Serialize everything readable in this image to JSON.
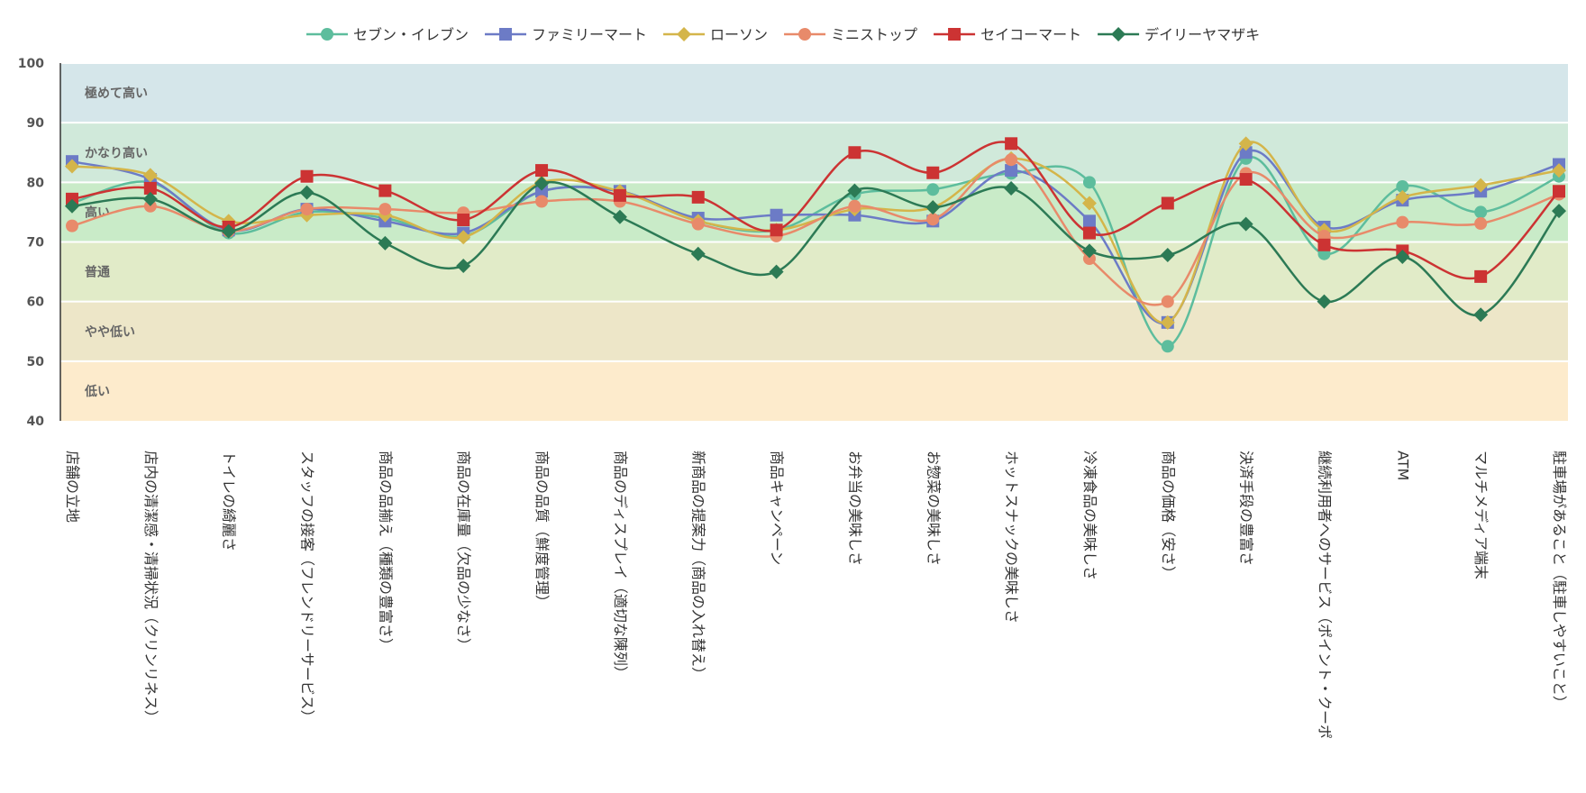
{
  "chart_data": {
    "type": "line",
    "ylim": [
      40,
      100
    ],
    "yticks": [
      40,
      50,
      60,
      70,
      80,
      90,
      100
    ],
    "grid": true,
    "legend_position": "top-center",
    "bands": [
      {
        "label": "極めて高い",
        "from": 90,
        "to": 100,
        "color": "#d5e6ea"
      },
      {
        "label": "かなり高い",
        "from": 80,
        "to": 90,
        "color": "#d0e9da"
      },
      {
        "label": "高い",
        "from": 70,
        "to": 80,
        "color": "#c9ebc8"
      },
      {
        "label": "普通",
        "from": 60,
        "to": 70,
        "color": "#e1ebc8"
      },
      {
        "label": "やや低い",
        "from": 50,
        "to": 60,
        "color": "#ede6c8"
      },
      {
        "label": "低い",
        "from": 40,
        "to": 50,
        "color": "#fdebcc"
      }
    ],
    "categories": [
      "店舗の立地",
      "店内の清潔感・清掃状況（クリンリネス）",
      "トイレの綺麗さ",
      "スタッフの接客（フレンドリーサービス）",
      "商品の品揃え（種類の豊富さ）",
      "商品の在庫量（欠品の少なさ）",
      "商品の品質（鮮度管理）",
      "商品のディスプレイ（適切な陳列）",
      "新商品の提案力（商品の入れ替え）",
      "商品キャンペーン",
      "お弁当の美味しさ",
      "お惣菜の美味しさ",
      "ホットスナックの美味しさ",
      "冷凍食品の美味しさ",
      "商品の価格（安さ）",
      "決済手段の豊富さ",
      "継続利用者へのサービス（ポイント・クーポ",
      "ATM",
      "マルチメディア端末",
      "駐車場があること（駐車しやすいこと）"
    ],
    "series": [
      {
        "name": "セブン・イレブン",
        "color": "#5dbd9d",
        "marker": "circle",
        "values": [
          76.5,
          80,
          71.5,
          75,
          74,
          71,
          78.5,
          78.5,
          73.5,
          72,
          78,
          78.8,
          81.5,
          80,
          52.5,
          84,
          68,
          79.3,
          75,
          81
        ]
      },
      {
        "name": "ファミリーマート",
        "color": "#6c7bc6",
        "marker": "square",
        "values": [
          83.5,
          80.5,
          72,
          75.5,
          73.5,
          71.5,
          78.5,
          78.5,
          74,
          74.5,
          74.5,
          73.5,
          82,
          73.5,
          56.5,
          85,
          72.5,
          77,
          78.5,
          83
        ]
      },
      {
        "name": "ローソン",
        "color": "#d4b54a",
        "marker": "diamond",
        "values": [
          82.7,
          81.2,
          73.5,
          74.5,
          74.5,
          70.8,
          80,
          78.5,
          73.5,
          72,
          75.5,
          75.8,
          84,
          76.5,
          56.5,
          86.5,
          72,
          77.5,
          79.5,
          82
        ]
      },
      {
        "name": "ミニストップ",
        "color": "#e88a6a",
        "marker": "circle",
        "values": [
          72.7,
          76,
          71.8,
          75.5,
          75.5,
          74.9,
          76.8,
          76.8,
          73,
          71,
          76,
          73.8,
          83.8,
          67.2,
          60,
          81.5,
          71,
          73.3,
          73.1,
          78
        ]
      },
      {
        "name": "セイコーマート",
        "color": "#cc3333",
        "marker": "square",
        "values": [
          77.2,
          79,
          72.5,
          81,
          78.6,
          73.7,
          82,
          77.8,
          77.5,
          72,
          85,
          81.6,
          86.5,
          71.5,
          76.5,
          80.5,
          69.5,
          68.5,
          64.2,
          78.5
        ]
      },
      {
        "name": "デイリーヤマザキ",
        "color": "#2c7a55",
        "marker": "diamond",
        "values": [
          76,
          77.2,
          71.8,
          78.3,
          69.8,
          66,
          79.8,
          74.2,
          68,
          65,
          78.6,
          75.8,
          79,
          68.5,
          67.8,
          73,
          60,
          67.5,
          57.8,
          75.2
        ]
      }
    ]
  }
}
